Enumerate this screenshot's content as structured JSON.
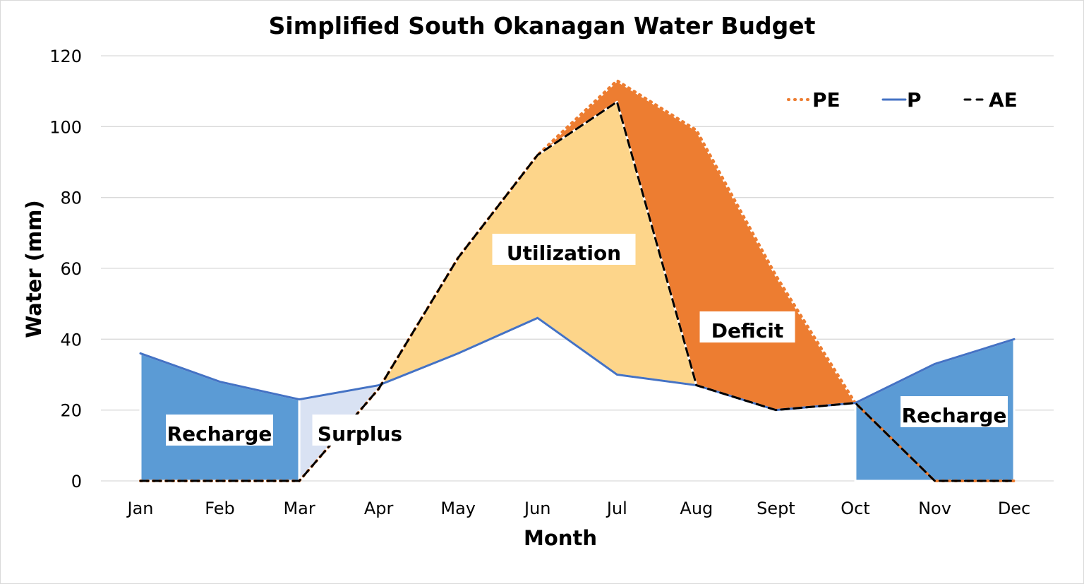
{
  "chart_data": {
    "type": "line",
    "title": "Simplified South Okanagan Water Budget",
    "xlabel": "Month",
    "ylabel": "Water (mm)",
    "ylim": [
      0,
      120
    ],
    "yticks": [
      0,
      20,
      40,
      60,
      80,
      100,
      120
    ],
    "grid": true,
    "legend_position": "top-right",
    "categories": [
      "Jan",
      "Feb",
      "Mar",
      "Apr",
      "May",
      "Jun",
      "Jul",
      "Aug",
      "Sept",
      "Oct",
      "Nov",
      "Dec"
    ],
    "series": [
      {
        "name": "PE",
        "style": "dotted",
        "color": "#ED7D31",
        "values": [
          0,
          0,
          0,
          26,
          63,
          92,
          113,
          99,
          58,
          22,
          0,
          0
        ]
      },
      {
        "name": "P",
        "style": "solid",
        "color": "#4472C4",
        "values": [
          36,
          28,
          23,
          27,
          36,
          46,
          30,
          27,
          20,
          22,
          33,
          40
        ]
      },
      {
        "name": "AE",
        "style": "dashed",
        "color": "#000000",
        "values": [
          0,
          0,
          0,
          26,
          63,
          92,
          107,
          27,
          20,
          22,
          0,
          0
        ]
      }
    ],
    "regions": [
      {
        "label": "Recharge",
        "color": "#5B9BD5",
        "upper": "P",
        "lower": "zero",
        "from": 0,
        "to": 2
      },
      {
        "label": "Surplus",
        "color": "#D9E2F3",
        "upper": "P",
        "lower": "AE",
        "from": 2,
        "to": 3
      },
      {
        "label": "Utilization",
        "color": "#FDD58A",
        "upper": "AE",
        "lower": "P",
        "from": 3,
        "to": 7
      },
      {
        "label": "Deficit",
        "color": "#ED7D31",
        "upper": "PE",
        "lower": "AE",
        "from": 5,
        "to": 9
      },
      {
        "label": "Recharge",
        "color": "#5B9BD5",
        "upper": "P",
        "lower": "zero",
        "from": 9,
        "to": 11
      }
    ]
  }
}
